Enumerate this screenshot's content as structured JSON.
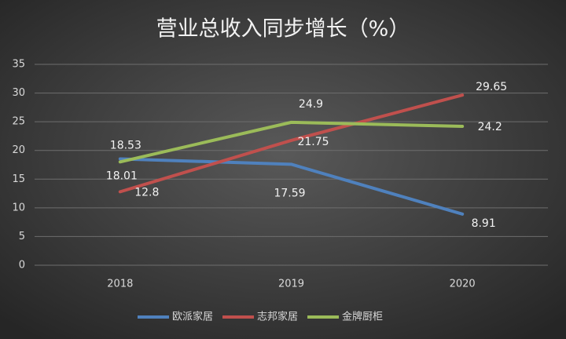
{
  "chart_data": {
    "type": "line",
    "title": "营业总收入同步增长（%）",
    "categories": [
      "2018",
      "2019",
      "2020"
    ],
    "series": [
      {
        "name": "欧派家居",
        "color": "#4f81bd",
        "values": [
          18.53,
          17.59,
          8.91
        ]
      },
      {
        "name": "志邦家居",
        "color": "#c0504d",
        "values": [
          12.8,
          21.75,
          29.65
        ]
      },
      {
        "name": "金牌厨柜",
        "color": "#9bbb59",
        "values": [
          18.01,
          24.9,
          24.2
        ]
      }
    ],
    "ylim": [
      0,
      35
    ],
    "yticks": [
      0,
      5,
      10,
      15,
      20,
      25,
      30,
      35
    ],
    "grid": true,
    "legend": "bottom"
  }
}
